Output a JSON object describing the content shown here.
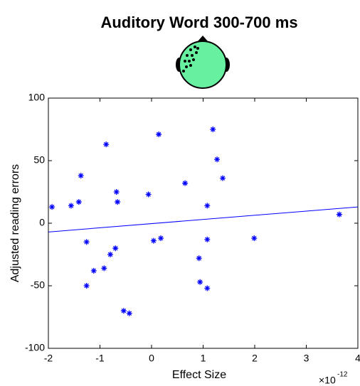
{
  "chart_data": {
    "type": "scatter",
    "title": "Auditory Word 300-700 ms",
    "x_label": "Effect Size",
    "y_label": "Adjusted reading errors",
    "x_scale_label": "×10",
    "x_scale_exponent": "-12",
    "color": "#0000ff",
    "fit_color": "#0000ff",
    "x": [
      -1.93,
      -1.56,
      -1.41,
      -1.37,
      -1.26,
      -1.26,
      -1.12,
      -0.92,
      -0.88,
      -0.8,
      -0.7,
      -0.68,
      -0.66,
      -0.54,
      -0.43,
      -0.06,
      0.04,
      0.14,
      0.18,
      0.65,
      0.92,
      0.94,
      1.08,
      1.08,
      1.08,
      1.19,
      1.27,
      1.38,
      1.99,
      3.64
    ],
    "y": [
      13,
      14,
      17,
      38,
      -15,
      -50,
      -38,
      -36,
      63,
      -25,
      -20,
      25,
      17,
      -70,
      -72,
      23,
      -14,
      71,
      -12,
      32,
      -28,
      -47,
      14,
      -13,
      -52,
      75,
      51,
      36,
      -12,
      7
    ],
    "fit_line": {
      "x": [
        -2,
        4
      ],
      "y": [
        -7,
        13
      ]
    },
    "xlim": [
      -2,
      4
    ],
    "ylim": [
      -100,
      100
    ],
    "xticks": [
      -2,
      -1,
      0,
      1,
      2,
      3,
      4
    ],
    "yticks": [
      -100,
      -50,
      0,
      50,
      100
    ]
  }
}
